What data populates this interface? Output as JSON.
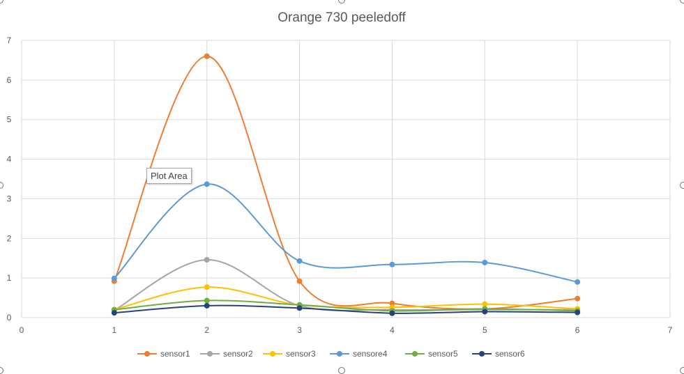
{
  "chart_data": {
    "type": "line",
    "title": "Orange 730 peeledoff",
    "x": [
      1,
      2,
      3,
      4,
      5,
      6
    ],
    "xlim": [
      0,
      7
    ],
    "ylim": [
      0,
      7
    ],
    "xticks": [
      0,
      1,
      2,
      3,
      4,
      5,
      6,
      7
    ],
    "yticks": [
      0,
      1,
      2,
      3,
      4,
      5,
      6,
      7
    ],
    "grid": true,
    "smooth": true,
    "legend_position": "bottom",
    "series": [
      {
        "name": "sensor1",
        "color": "#ED7D31",
        "values": [
          0.92,
          6.6,
          0.92,
          0.36,
          0.22,
          0.48
        ]
      },
      {
        "name": "sensor2",
        "color": "#A5A5A5",
        "values": [
          0.18,
          1.46,
          0.3,
          0.2,
          0.2,
          0.2
        ]
      },
      {
        "name": "sensor3",
        "color": "#FFC000",
        "values": [
          0.2,
          0.77,
          0.32,
          0.26,
          0.34,
          0.22
        ]
      },
      {
        "name": "sensore4",
        "color": "#5B9BD5",
        "values": [
          0.99,
          3.37,
          1.43,
          1.34,
          1.39,
          0.9
        ]
      },
      {
        "name": "sensor5",
        "color": "#70AD47",
        "values": [
          0.2,
          0.43,
          0.32,
          0.17,
          0.22,
          0.17
        ]
      },
      {
        "name": "sensor6",
        "color": "#264478",
        "values": [
          0.12,
          0.3,
          0.24,
          0.11,
          0.15,
          0.13
        ]
      }
    ]
  },
  "tooltip": {
    "label": "Plot Area"
  }
}
